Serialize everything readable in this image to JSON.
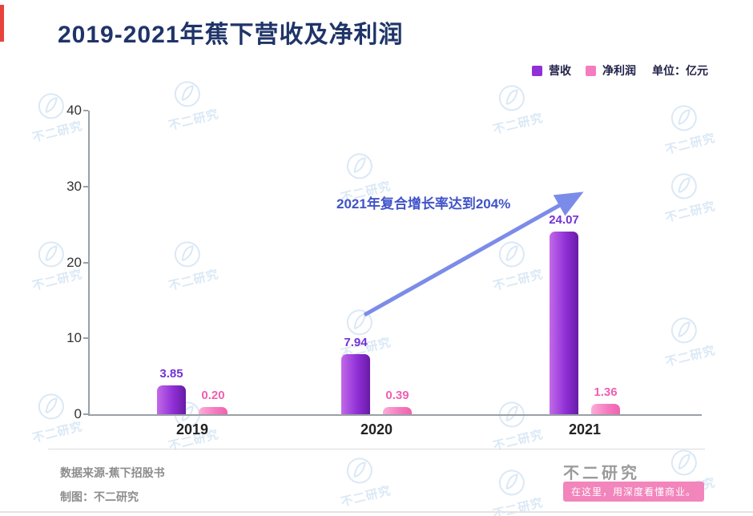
{
  "chart_data": {
    "type": "bar",
    "title": "2019-2021年蕉下营收及净利润",
    "unit_label": "单位：亿元",
    "categories": [
      "2019",
      "2020",
      "2021"
    ],
    "series": [
      {
        "name": "营收",
        "color": "#9030d6",
        "values": [
          3.85,
          7.94,
          24.07
        ],
        "value_labels": [
          "3.85",
          "7.94",
          "24.07"
        ]
      },
      {
        "name": "净利润",
        "color": "#f57cc0",
        "values": [
          0.2,
          0.39,
          1.36
        ],
        "value_labels": [
          "0.20",
          "0.39",
          "1.36"
        ]
      }
    ],
    "ylim": [
      0,
      40
    ],
    "yticks": [
      0,
      10,
      20,
      30,
      40
    ],
    "grid": false,
    "legend_position": "top-right",
    "annotation": "2021年复合增长率达到204%"
  },
  "watermark": {
    "text": "不二研究"
  },
  "footer": {
    "source": "数据来源-蕉下招股书",
    "credit": "制图：不二研究",
    "brand": "不二研究",
    "tagline": "在这里，用深度看懂商业。"
  },
  "colors": {
    "title": "#1f3468",
    "revenue_bar": "#9030d6",
    "profit_bar": "#f57cc0",
    "annotation_blue": "#4053c8",
    "arrow_blue": "#7b8ce8",
    "accent_red": "#e8433c",
    "badge_pink": "#f285bb",
    "watermark_blue": "#bcd7ef"
  }
}
